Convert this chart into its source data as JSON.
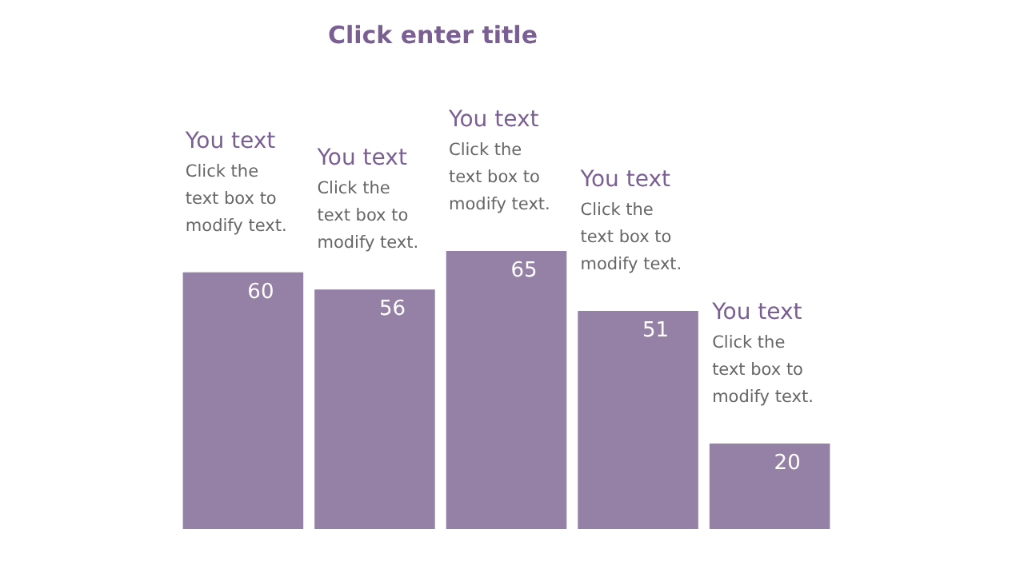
{
  "chart_data": {
    "type": "bar",
    "title": "Click enter title",
    "categories": [
      null,
      null,
      null,
      null,
      null
    ],
    "values": [
      60,
      56,
      65,
      51,
      20
    ],
    "color": "#9681a6",
    "data_labels": true,
    "annotations": [
      "You text",
      "Click the\ntext box to\nmodify text.",
      "You text",
      "Click the\ntext box to\nmodify text.",
      "You text",
      "Click the\ntext box to\nmodify text.",
      "You text",
      "Click the\ntext box to\nmodify text.",
      "You text",
      "Click the\ntext box to\nmodify text."
    ]
  }
}
